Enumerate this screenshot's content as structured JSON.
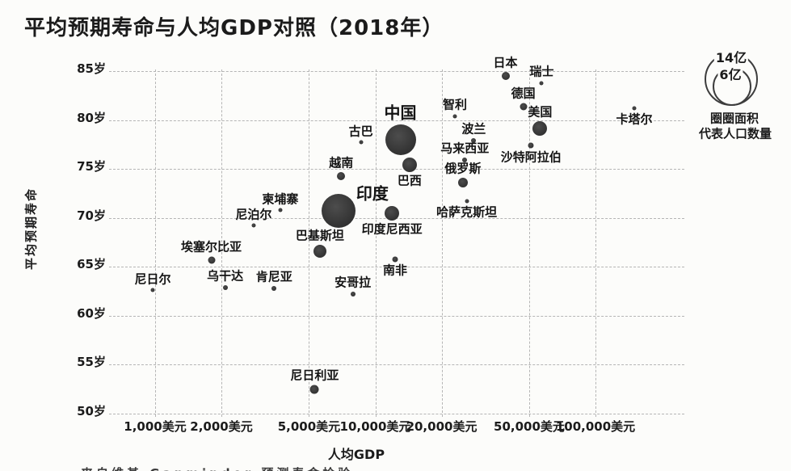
{
  "page": {
    "title": "平均预期寿命与人均GDP对照（2018年）",
    "footnote": "来自维基 Gapminder 预测寿命检验"
  },
  "legend": {
    "big_circle_label": "14亿",
    "small_circle_label": "6亿",
    "caption_line1": "圈圈面积",
    "caption_line2": "代表人口数量"
  },
  "chart_data": {
    "type": "scatter",
    "title": "平均预期寿命与人均GDP对照（2018年）",
    "xlabel": "人均GDP",
    "ylabel": "平均预期寿命",
    "x_scale": "log",
    "grid": true,
    "legend_position": "top-right",
    "bubble_area_means": "人口数量",
    "x_ticks": [
      {
        "value": 1000,
        "label": "1,000美元"
      },
      {
        "value": 2000,
        "label": "2,000美元"
      },
      {
        "value": 5000,
        "label": "5,000美元"
      },
      {
        "value": 10000,
        "label": "10,000美元"
      },
      {
        "value": 20000,
        "label": "20,000美元"
      },
      {
        "value": 50000,
        "label": "50,000美元"
      },
      {
        "value": 100000,
        "label": "100,000美元"
      }
    ],
    "y_ticks": [
      {
        "value": 85,
        "label": "85岁"
      },
      {
        "value": 80,
        "label": "80岁"
      },
      {
        "value": 75,
        "label": "75岁"
      },
      {
        "value": 70,
        "label": "70岁"
      },
      {
        "value": 65,
        "label": "65岁"
      },
      {
        "value": 60,
        "label": "60岁"
      },
      {
        "value": 55,
        "label": "55岁"
      },
      {
        "value": 50,
        "label": "50岁"
      }
    ],
    "points": [
      {
        "key": "japan",
        "name": "日本",
        "gdp": 39000,
        "life": 84.5,
        "r": 5,
        "label": "above"
      },
      {
        "key": "switzerland",
        "name": "瑞士",
        "gdp": 57000,
        "life": 83.8,
        "r": 2.5,
        "label": "above"
      },
      {
        "key": "germany",
        "name": "德国",
        "gdp": 47000,
        "life": 81.4,
        "r": 4.5,
        "label": "above"
      },
      {
        "key": "usa",
        "name": "美国",
        "gdp": 56000,
        "life": 79.1,
        "r": 9,
        "label": "above"
      },
      {
        "key": "qatar",
        "name": "卡塔尔",
        "gdp": 150000,
        "life": 81.2,
        "r": 2.5,
        "label": "below"
      },
      {
        "key": "chile",
        "name": "智利",
        "gdp": 23000,
        "life": 80.4,
        "r": 2.5,
        "label": "above"
      },
      {
        "key": "china",
        "name": "中国",
        "gdp": 13000,
        "life": 78.0,
        "r": 19,
        "label": "above",
        "big": true
      },
      {
        "key": "poland",
        "name": "波兰",
        "gdp": 28000,
        "life": 77.9,
        "r": 3,
        "label": "above"
      },
      {
        "key": "malaysia",
        "name": "马来西亚",
        "gdp": 25500,
        "life": 75.9,
        "r": 3,
        "label": "above"
      },
      {
        "key": "saudi-arabia",
        "name": "沙特阿拉伯",
        "gdp": 51000,
        "life": 77.4,
        "r": 3.5,
        "label": "below"
      },
      {
        "key": "cuba",
        "name": "古巴",
        "gdp": 8600,
        "life": 77.7,
        "r": 2.5,
        "label": "above"
      },
      {
        "key": "vietnam",
        "name": "越南",
        "gdp": 7000,
        "life": 74.3,
        "r": 5,
        "label": "above"
      },
      {
        "key": "russia",
        "name": "俄罗斯",
        "gdp": 25000,
        "life": 73.6,
        "r": 6,
        "label": "above"
      },
      {
        "key": "brazil",
        "name": "巴西",
        "gdp": 14300,
        "life": 75.4,
        "r": 9,
        "label": "below"
      },
      {
        "key": "india",
        "name": "印度",
        "gdp": 6800,
        "life": 70.7,
        "r": 21,
        "label": "offset",
        "dx": 42,
        "dy": -21,
        "big": true
      },
      {
        "key": "kazakhstan",
        "name": "哈萨克斯坦",
        "gdp": 26000,
        "life": 71.7,
        "r": 2.5,
        "label": "below"
      },
      {
        "key": "indonesia",
        "name": "印度尼西亚",
        "gdp": 11900,
        "life": 70.5,
        "r": 9,
        "label": "below"
      },
      {
        "key": "cambodia",
        "name": "柬埔寨",
        "gdp": 3700,
        "life": 70.8,
        "r": 2.5,
        "label": "above"
      },
      {
        "key": "nepal",
        "name": "尼泊尔",
        "gdp": 2800,
        "life": 69.2,
        "r": 2.5,
        "label": "above"
      },
      {
        "key": "pakistan",
        "name": "巴基斯坦",
        "gdp": 5600,
        "life": 66.6,
        "r": 8,
        "label": "above"
      },
      {
        "key": "ethiopia",
        "name": "埃塞尔比亚",
        "gdp": 1800,
        "life": 65.7,
        "r": 4.5,
        "label": "above"
      },
      {
        "key": "south-africa",
        "name": "南非",
        "gdp": 12300,
        "life": 65.8,
        "r": 3.5,
        "label": "below"
      },
      {
        "key": "niger",
        "name": "尼日尔",
        "gdp": 975,
        "life": 62.6,
        "r": 2.5,
        "label": "above"
      },
      {
        "key": "uganda",
        "name": "乌干达",
        "gdp": 2080,
        "life": 62.9,
        "r": 3,
        "label": "above"
      },
      {
        "key": "kenya",
        "name": "肯尼亚",
        "gdp": 3470,
        "life": 62.8,
        "r": 3,
        "label": "above"
      },
      {
        "key": "angola",
        "name": "安哥拉",
        "gdp": 7900,
        "life": 62.2,
        "r": 3,
        "label": "above"
      },
      {
        "key": "nigeria",
        "name": "尼日利亚",
        "gdp": 5300,
        "life": 52.5,
        "r": 5.5,
        "label": "above"
      }
    ]
  }
}
